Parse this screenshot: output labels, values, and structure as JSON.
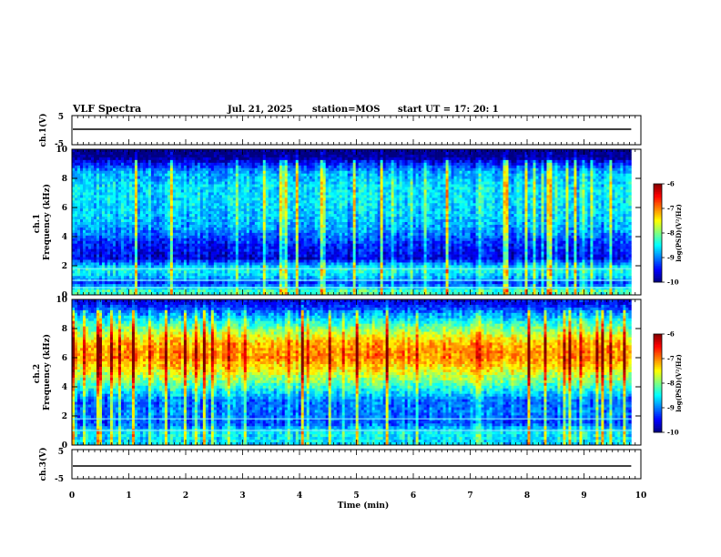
{
  "header": {
    "title": "VLF Spectra",
    "date": "Jul. 21, 2025",
    "station": "station=MOS",
    "start": "start UT =  17: 20: 1"
  },
  "chart_data": [
    {
      "type": "line",
      "id": "ch1-voltage",
      "ylabel": "ch.1(V)",
      "ylim": [
        -5,
        5
      ],
      "yticks": [
        "5",
        "-5"
      ],
      "x": [
        0,
        9.83
      ],
      "values": [
        0,
        0
      ],
      "color": "#000000"
    },
    {
      "type": "heatmap",
      "id": "ch1-spectrogram",
      "ylabel": "ch.1\nFrequency (kHz)",
      "ylim": [
        0,
        10
      ],
      "yticks": [
        "0",
        "2",
        "4",
        "6",
        "8",
        "10"
      ],
      "xlim": [
        0,
        10
      ],
      "data_end_min": 9.83,
      "colorbar": {
        "label": "log(PSD)(V²/Hz)",
        "range": [
          -10,
          -6
        ],
        "ticks": [
          "-6",
          "-7",
          "-8",
          "-9",
          "-10"
        ]
      },
      "band_profile": [
        {
          "f": 0.3,
          "v": -8.3
        },
        {
          "f": 0.8,
          "v": -9.3
        },
        {
          "f": 1.2,
          "v": -8.8
        },
        {
          "f": 1.8,
          "v": -8.4
        },
        {
          "f": 2.5,
          "v": -9.6
        },
        {
          "f": 3.5,
          "v": -9.4
        },
        {
          "f": 4.5,
          "v": -8.9
        },
        {
          "f": 5.5,
          "v": -8.7
        },
        {
          "f": 6.5,
          "v": -8.6
        },
        {
          "f": 7.5,
          "v": -8.6
        },
        {
          "f": 8.5,
          "v": -8.9
        },
        {
          "f": 9.5,
          "v": -10.0
        }
      ],
      "lines_khz": [
        0.5,
        1.0,
        1.8
      ]
    },
    {
      "type": "heatmap",
      "id": "ch2-spectrogram",
      "ylabel": "ch.2\nFrequency (kHz)",
      "ylim": [
        0,
        10
      ],
      "yticks": [
        "0",
        "2",
        "4",
        "6",
        "8",
        "10"
      ],
      "xlim": [
        0,
        10
      ],
      "data_end_min": 9.83,
      "colorbar": {
        "label": "log(PSD)(V²/Hz)",
        "range": [
          -10,
          -6
        ],
        "ticks": [
          "-6",
          "-7",
          "-8",
          "-9",
          "-10"
        ]
      },
      "band_profile": [
        {
          "f": 0.3,
          "v": -8.6
        },
        {
          "f": 0.9,
          "v": -8.5
        },
        {
          "f": 1.5,
          "v": -9.2
        },
        {
          "f": 2.2,
          "v": -9.0
        },
        {
          "f": 3.0,
          "v": -9.1
        },
        {
          "f": 4.0,
          "v": -8.3
        },
        {
          "f": 5.0,
          "v": -7.6
        },
        {
          "f": 6.0,
          "v": -7.0
        },
        {
          "f": 7.0,
          "v": -7.2
        },
        {
          "f": 8.0,
          "v": -8.0
        },
        {
          "f": 9.0,
          "v": -8.9
        },
        {
          "f": 9.8,
          "v": -9.6
        }
      ],
      "lines_khz": [
        1.0,
        1.8
      ]
    },
    {
      "type": "line",
      "id": "ch3-voltage",
      "ylabel": "ch.3(V)",
      "ylim": [
        -5,
        5
      ],
      "yticks": [
        "5",
        "-5"
      ],
      "x": [
        0,
        9.83
      ],
      "values": [
        0,
        0
      ],
      "color": "#000000"
    }
  ],
  "xaxis": {
    "label": "Time (min)",
    "range": [
      0,
      10
    ],
    "ticks": [
      "0",
      "1",
      "2",
      "3",
      "4",
      "5",
      "6",
      "7",
      "8",
      "9",
      "10"
    ]
  }
}
